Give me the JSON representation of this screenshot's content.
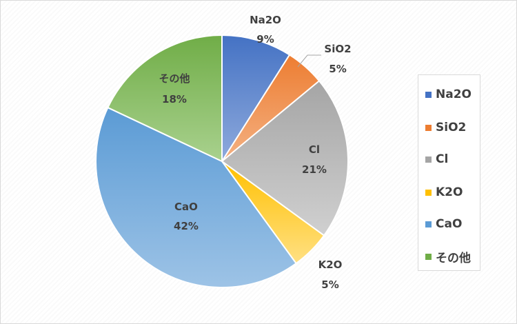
{
  "chart_data": {
    "type": "pie",
    "title": "",
    "categories": [
      "Na2O",
      "SiO2",
      "Cl",
      "K2O",
      "CaO",
      "その他"
    ],
    "values": [
      9,
      5,
      21,
      5,
      42,
      18
    ],
    "labels": [
      "9%",
      "5%",
      "21%",
      "5%",
      "42%",
      "18%"
    ],
    "colors": [
      "#4472c4",
      "#ed7d31",
      "#a5a5a5",
      "#ffc000",
      "#5b9bd5",
      "#70ad47"
    ],
    "gradient_light": [
      "#8faadc",
      "#f4b183",
      "#d0d0d0",
      "#ffe083",
      "#9dc3e6",
      "#a9d18e"
    ],
    "legend_position": "right",
    "start_angle": "12 o'clock, clockwise"
  },
  "legend": {
    "items": [
      {
        "label": "Na2O",
        "color": "#4472c4"
      },
      {
        "label": "SiO2",
        "color": "#ed7d31"
      },
      {
        "label": "Cl",
        "color": "#a5a5a5"
      },
      {
        "label": "K2O",
        "color": "#ffc000"
      },
      {
        "label": "CaO",
        "color": "#5b9bd5"
      },
      {
        "label": "その他",
        "color": "#70ad47"
      }
    ]
  }
}
